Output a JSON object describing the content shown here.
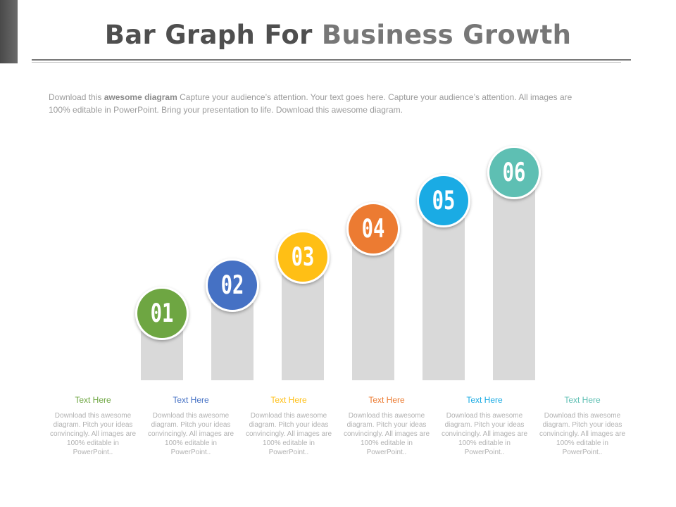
{
  "header": {
    "title_part1": "Bar Graph For",
    "title_part2": "Business Growth",
    "intro_lead": "Download this ",
    "intro_strong": "awesome diagram",
    "intro_rest": " Capture your audience’s attention. Your text goes here. Capture your audience’s attention. All images are 100% editable in PowerPoint. Bring your presentation to life. Download this awesome diagram."
  },
  "chart_data": {
    "type": "bar",
    "title": "Bar Graph For Business Growth",
    "categories": [
      "01",
      "02",
      "03",
      "04",
      "05",
      "06"
    ],
    "values": [
      1,
      2,
      3,
      4,
      5,
      6
    ],
    "ylim": [
      0,
      6
    ],
    "colors": [
      "#6ea642",
      "#4571c4",
      "#ffbf15",
      "#ec7b32",
      "#1aabe4",
      "#5ebfb3"
    ],
    "bar_color": "#d9d9d9"
  },
  "labels": [
    {
      "title": "Text Here",
      "desc": "Download this awesome diagram. Pitch your ideas convincingly. All images are 100% editable in PowerPoint..",
      "color": "#6ea642"
    },
    {
      "title": "Text Here",
      "desc": "Download this awesome diagram. Pitch your ideas convincingly. All images are 100% editable in PowerPoint..",
      "color": "#4571c4"
    },
    {
      "title": "Text Here",
      "desc": "Download this awesome diagram. Pitch your ideas convincingly. All images are 100% editable in PowerPoint..",
      "color": "#ffbf15"
    },
    {
      "title": "Text Here",
      "desc": "Download this awesome diagram. Pitch your ideas convincingly. All images are 100% editable in PowerPoint..",
      "color": "#ec7b32"
    },
    {
      "title": "Text Here",
      "desc": "Download this awesome diagram. Pitch your ideas convincingly. All images are 100% editable in PowerPoint..",
      "color": "#1aabe4"
    },
    {
      "title": "Text Here",
      "desc": "Download this awesome diagram. Pitch your ideas convincingly. All images are 100% editable in PowerPoint..",
      "color": "#5ebfb3"
    }
  ]
}
